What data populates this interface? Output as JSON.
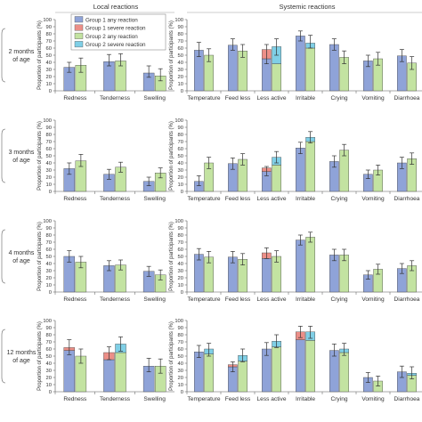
{
  "panel_headers": {
    "local": "Local reactions",
    "systemic": "Systemic reactions"
  },
  "legend": [
    {
      "label": "Group 1 any reaction",
      "color": "#8fa3d8"
    },
    {
      "label": "Group 1 severe reaction",
      "color": "#ec8f88"
    },
    {
      "label": "Group 2 any reaction",
      "color": "#c3e3a1"
    },
    {
      "label": "Group 2 severe reaction",
      "color": "#7fcfe6"
    }
  ],
  "ylabel": "Proportion of participants (%)",
  "colors": {
    "g1": "#8fa3d8",
    "g1_severe": "#ec8f88",
    "g2": "#c3e3a1",
    "g2_severe": "#7fcfe6",
    "axis": "#555555",
    "error": "#333333"
  },
  "chart_data": [
    {
      "type": "bar",
      "row_label": [
        "2 months",
        "of age"
      ],
      "ylim": [
        0,
        100
      ],
      "yticks": [
        0,
        10,
        20,
        30,
        40,
        50,
        60,
        70,
        80,
        90,
        100
      ],
      "local": {
        "categories": [
          "Redness",
          "Tenderness",
          "Swelling"
        ],
        "series": [
          {
            "name": "Group 1 any reaction",
            "values": [
              33,
              41,
              25
            ],
            "err": [
              [
                26,
                40
              ],
              [
                35,
                51
              ],
              [
                19,
                35
              ]
            ]
          },
          {
            "name": "Group 1 severe reaction",
            "values": [
              0,
              0,
              0
            ]
          },
          {
            "name": "Group 2 any reaction",
            "values": [
              36,
              42,
              21
            ],
            "err": [
              [
                26,
                46
              ],
              [
                35,
                52
              ],
              [
                14,
                31
              ]
            ]
          },
          {
            "name": "Group 2 severe reaction",
            "values": [
              0,
              0,
              0
            ]
          }
        ]
      },
      "systemic": {
        "categories": [
          "Temperature",
          "Feed less",
          "Less active",
          "Irritable",
          "Crying",
          "Vomiting",
          "Diarrhoea"
        ],
        "series": [
          {
            "name": "Group 1 any reaction",
            "values": [
              57,
              64,
              45,
              77,
              65,
              42,
              49
            ],
            "err": [
              [
                48,
                68
              ],
              [
                57,
                73
              ],
              [
                38,
                65
              ],
              [
                70,
                84
              ],
              [
                57,
                73
              ],
              [
                34,
                50
              ],
              [
                41,
                58
              ]
            ]
          },
          {
            "name": "Group 1 severe reaction",
            "values": [
              0,
              0,
              13,
              0,
              0,
              0,
              0
            ]
          },
          {
            "name": "Group 2 any reaction",
            "values": [
              50,
              56,
              38,
              60,
              47,
              45,
              39
            ],
            "err": [
              [
                41,
                59
              ],
              [
                47,
                65
              ],
              [
                50,
                73
              ],
              [
                60,
                78
              ],
              [
                38,
                56
              ],
              [
                36,
                54
              ],
              [
                30,
                48
              ]
            ]
          },
          {
            "name": "Group 2 severe reaction",
            "values": [
              0,
              0,
              24,
              7,
              0,
              0,
              0
            ]
          }
        ]
      }
    },
    {
      "type": "bar",
      "row_label": [
        "3 months",
        "of age"
      ],
      "ylim": [
        0,
        100
      ],
      "yticks": [
        0,
        10,
        20,
        30,
        40,
        50,
        60,
        70,
        80,
        90,
        100
      ],
      "local": {
        "categories": [
          "Redness",
          "Tenderness",
          "Swelling"
        ],
        "series": [
          {
            "name": "Group 1 any reaction",
            "values": [
              32,
              24,
              14
            ],
            "err": [
              [
                24,
                40
              ],
              [
                17,
                31
              ],
              [
                8,
                20
              ]
            ]
          },
          {
            "name": "Group 1 severe reaction",
            "values": [
              0,
              0,
              0
            ]
          },
          {
            "name": "Group 2 any reaction",
            "values": [
              43,
              34,
              26
            ],
            "err": [
              [
                35,
                52
              ],
              [
                27,
                41
              ],
              [
                19,
                33
              ]
            ]
          },
          {
            "name": "Group 2 severe reaction",
            "values": [
              0,
              0,
              0
            ]
          }
        ]
      },
      "systemic": {
        "categories": [
          "Temperature",
          "Feed less",
          "Less active",
          "Irritable",
          "Crying",
          "Vomiting",
          "Diarrhoea"
        ],
        "series": [
          {
            "name": "Group 1 any reaction",
            "values": [
              14,
              39,
              28,
              61,
              42,
              24,
              40
            ],
            "err": [
              [
                8,
                22
              ],
              [
                31,
                47
              ],
              [
                22,
                35
              ],
              [
                53,
                69
              ],
              [
                34,
                50
              ],
              [
                18,
                30
              ],
              [
                32,
                48
              ]
            ]
          },
          {
            "name": "Group 1 severe reaction",
            "values": [
              0,
              0,
              5,
              0,
              0,
              0,
              0
            ]
          },
          {
            "name": "Group 2 any reaction",
            "values": [
              40,
              45,
              37,
              70,
              58,
              30,
              46
            ],
            "err": [
              [
                32,
                48
              ],
              [
                37,
                53
              ],
              [
                40,
                56
              ],
              [
                68,
                84
              ],
              [
                50,
                66
              ],
              [
                23,
                37
              ],
              [
                38,
                54
              ]
            ]
          },
          {
            "name": "Group 2 severe reaction",
            "values": [
              0,
              0,
              11,
              6,
              0,
              0,
              0
            ]
          }
        ]
      }
    },
    {
      "type": "bar",
      "row_label": [
        "4 months",
        "of age"
      ],
      "ylim": [
        0,
        100
      ],
      "yticks": [
        0,
        10,
        20,
        30,
        40,
        50,
        60,
        70,
        80,
        90,
        100
      ],
      "local": {
        "categories": [
          "Redness",
          "Tenderness",
          "Swelling"
        ],
        "series": [
          {
            "name": "Group 1 any reaction",
            "values": [
              50,
              37,
              29
            ],
            "err": [
              [
                42,
                58
              ],
              [
                30,
                44
              ],
              [
                22,
                36
              ]
            ]
          },
          {
            "name": "Group 1 severe reaction",
            "values": [
              0,
              0,
              0
            ]
          },
          {
            "name": "Group 2 any reaction",
            "values": [
              42,
              38,
              24
            ],
            "err": [
              [
                34,
                50
              ],
              [
                31,
                45
              ],
              [
                17,
                31
              ]
            ]
          },
          {
            "name": "Group 2 severe reaction",
            "values": [
              0,
              0,
              0
            ]
          }
        ]
      },
      "systemic": {
        "categories": [
          "Temperature",
          "Feed less",
          "Less active",
          "Irritable",
          "Crying",
          "Vomiting",
          "Diarrhoea"
        ],
        "series": [
          {
            "name": "Group 1 any reaction",
            "values": [
              53,
              49,
              47,
              73,
              52,
              24,
              33
            ],
            "err": [
              [
                45,
                61
              ],
              [
                41,
                57
              ],
              [
                47,
                62
              ],
              [
                66,
                80
              ],
              [
                44,
                60
              ],
              [
                18,
                30
              ],
              [
                26,
                40
              ]
            ]
          },
          {
            "name": "Group 1 severe reaction",
            "values": [
              0,
              0,
              8,
              0,
              0,
              0,
              0
            ]
          },
          {
            "name": "Group 2 any reaction",
            "values": [
              49,
              46,
              50,
              77,
              52,
              32,
              37
            ],
            "err": [
              [
                41,
                57
              ],
              [
                38,
                54
              ],
              [
                42,
                58
              ],
              [
                70,
                84
              ],
              [
                44,
                60
              ],
              [
                25,
                39
              ],
              [
                30,
                44
              ]
            ]
          },
          {
            "name": "Group 2 severe reaction",
            "values": [
              0,
              0,
              0,
              0,
              0,
              0,
              0
            ]
          }
        ]
      }
    },
    {
      "type": "bar",
      "row_label": [
        "12 months",
        "of age"
      ],
      "ylim": [
        0,
        100
      ],
      "yticks": [
        0,
        10,
        20,
        30,
        40,
        50,
        60,
        70,
        80,
        90,
        100
      ],
      "local": {
        "categories": [
          "Redness",
          "Tenderness",
          "Swelling"
        ],
        "series": [
          {
            "name": "Group 1 any reaction",
            "values": [
              58,
              45,
              36
            ],
            "err": [
              [
                52,
                73
              ],
              [
                45,
                63
              ],
              [
                28,
                47
              ]
            ]
          },
          {
            "name": "Group 1 severe reaction",
            "values": [
              4,
              10,
              0
            ]
          },
          {
            "name": "Group 2 any reaction",
            "values": [
              50,
              55,
              36
            ],
            "err": [
              [
                40,
                60
              ],
              [
                57,
                77
              ],
              [
                26,
                46
              ]
            ]
          },
          {
            "name": "Group 2 severe reaction",
            "values": [
              0,
              12,
              0
            ]
          }
        ]
      },
      "systemic": {
        "categories": [
          "Temperature",
          "Feed less",
          "Less active",
          "Irritable",
          "Crying",
          "Vomiting",
          "Diarrhoea"
        ],
        "series": [
          {
            "name": "Group 1 any reaction",
            "values": [
              56,
              35,
              60,
              73,
              58,
              20,
              28
            ],
            "err": [
              [
                48,
                65
              ],
              [
                28,
                42
              ],
              [
                51,
                69
              ],
              [
                76,
                92
              ],
              [
                50,
                67
              ],
              [
                13,
                27
              ],
              [
                20,
                36
              ]
            ]
          },
          {
            "name": "Group 1 severe reaction",
            "values": [
              0,
              3,
              0,
              11,
              0,
              0,
              0
            ]
          },
          {
            "name": "Group 2 any reaction",
            "values": [
              53,
              43,
              63,
              72,
              55,
              15,
              23
            ],
            "err": [
              [
                50,
                68
              ],
              [
                42,
                60
              ],
              [
                62,
                80
              ],
              [
                75,
                92
              ],
              [
                51,
                68
              ],
              [
                8,
                22
              ],
              [
                18,
                35
              ]
            ]
          },
          {
            "name": "Group 2 severe reaction",
            "values": [
              7,
              8,
              8,
              12,
              5,
              0,
              3
            ]
          }
        ]
      }
    }
  ]
}
